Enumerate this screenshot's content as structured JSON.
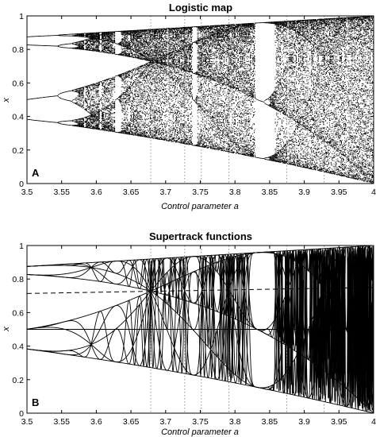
{
  "chart_data": [
    {
      "type": "scatter",
      "title": "Logistic map",
      "panel_label": "A",
      "xlabel": "Control parameter a",
      "ylabel": "x",
      "xlim": [
        3.5,
        4.0
      ],
      "ylim": [
        0,
        1
      ],
      "xticks": [
        "3.5",
        "3.55",
        "3.6",
        "3.65",
        "3.7",
        "3.75",
        "3.8",
        "3.85",
        "3.9",
        "3.95",
        "4"
      ],
      "yticks": [
        "0",
        "0.2",
        "0.4",
        "0.6",
        "0.8",
        "1"
      ],
      "grid": false,
      "marker_color": "#000000",
      "reference_lines_x": [
        3.6786,
        3.7275,
        3.7515,
        3.7913,
        3.8749,
        3.9285
      ],
      "series": [
        {
          "x": [
            3.5,
            3.55,
            3.6,
            3.62,
            3.64,
            3.66,
            3.68,
            3.7,
            3.72,
            3.74,
            3.76,
            3.78,
            3.8,
            3.82,
            3.84,
            3.86,
            3.88,
            3.9,
            3.92,
            3.94,
            3.96,
            3.98,
            4.0
          ],
          "x_min": [
            0.383,
            0.355,
            0.32,
            0.31,
            0.3,
            0.29,
            0.283,
            0.27,
            0.26,
            0.25,
            0.24,
            0.23,
            0.22,
            0.2,
            0.16,
            0.14,
            0.12,
            0.1,
            0.08,
            0.06,
            0.04,
            0.02,
            0.0
          ],
          "x_max": [
            0.875,
            0.887,
            0.9,
            0.905,
            0.91,
            0.915,
            0.92,
            0.925,
            0.93,
            0.935,
            0.94,
            0.945,
            0.95,
            0.955,
            0.96,
            0.965,
            0.97,
            0.975,
            0.98,
            0.985,
            0.99,
            0.995,
            1.0
          ]
        }
      ],
      "periodic_windows": [
        [
          3.627,
          3.631
        ],
        [
          3.7385,
          3.7445
        ],
        [
          3.828,
          3.857
        ]
      ]
    },
    {
      "type": "line",
      "title": "Supertrack functions",
      "panel_label": "B",
      "xlabel": "Control parameter a",
      "ylabel": "x",
      "xlim": [
        3.5,
        4.0
      ],
      "ylim": [
        0,
        1
      ],
      "xticks": [
        "3.5",
        "3.55",
        "3.6",
        "3.65",
        "3.7",
        "3.75",
        "3.8",
        "3.85",
        "3.9",
        "3.95",
        "4"
      ],
      "yticks": [
        "0",
        "0.2",
        "0.4",
        "0.6",
        "0.8",
        "1"
      ],
      "grid": false,
      "horizontal_line": 0.5,
      "dashed_line": {
        "x": [
          3.5,
          4.0
        ],
        "y": [
          0.714,
          0.75
        ]
      },
      "reference_lines_x": [
        3.6786,
        3.7275,
        3.7515,
        3.7913,
        3.8749,
        3.9285
      ],
      "supertracks": "s_n(a), s_1 = a/4, s_(n+1) = a*s_n*(1-s_n), n = 1..14"
    }
  ]
}
